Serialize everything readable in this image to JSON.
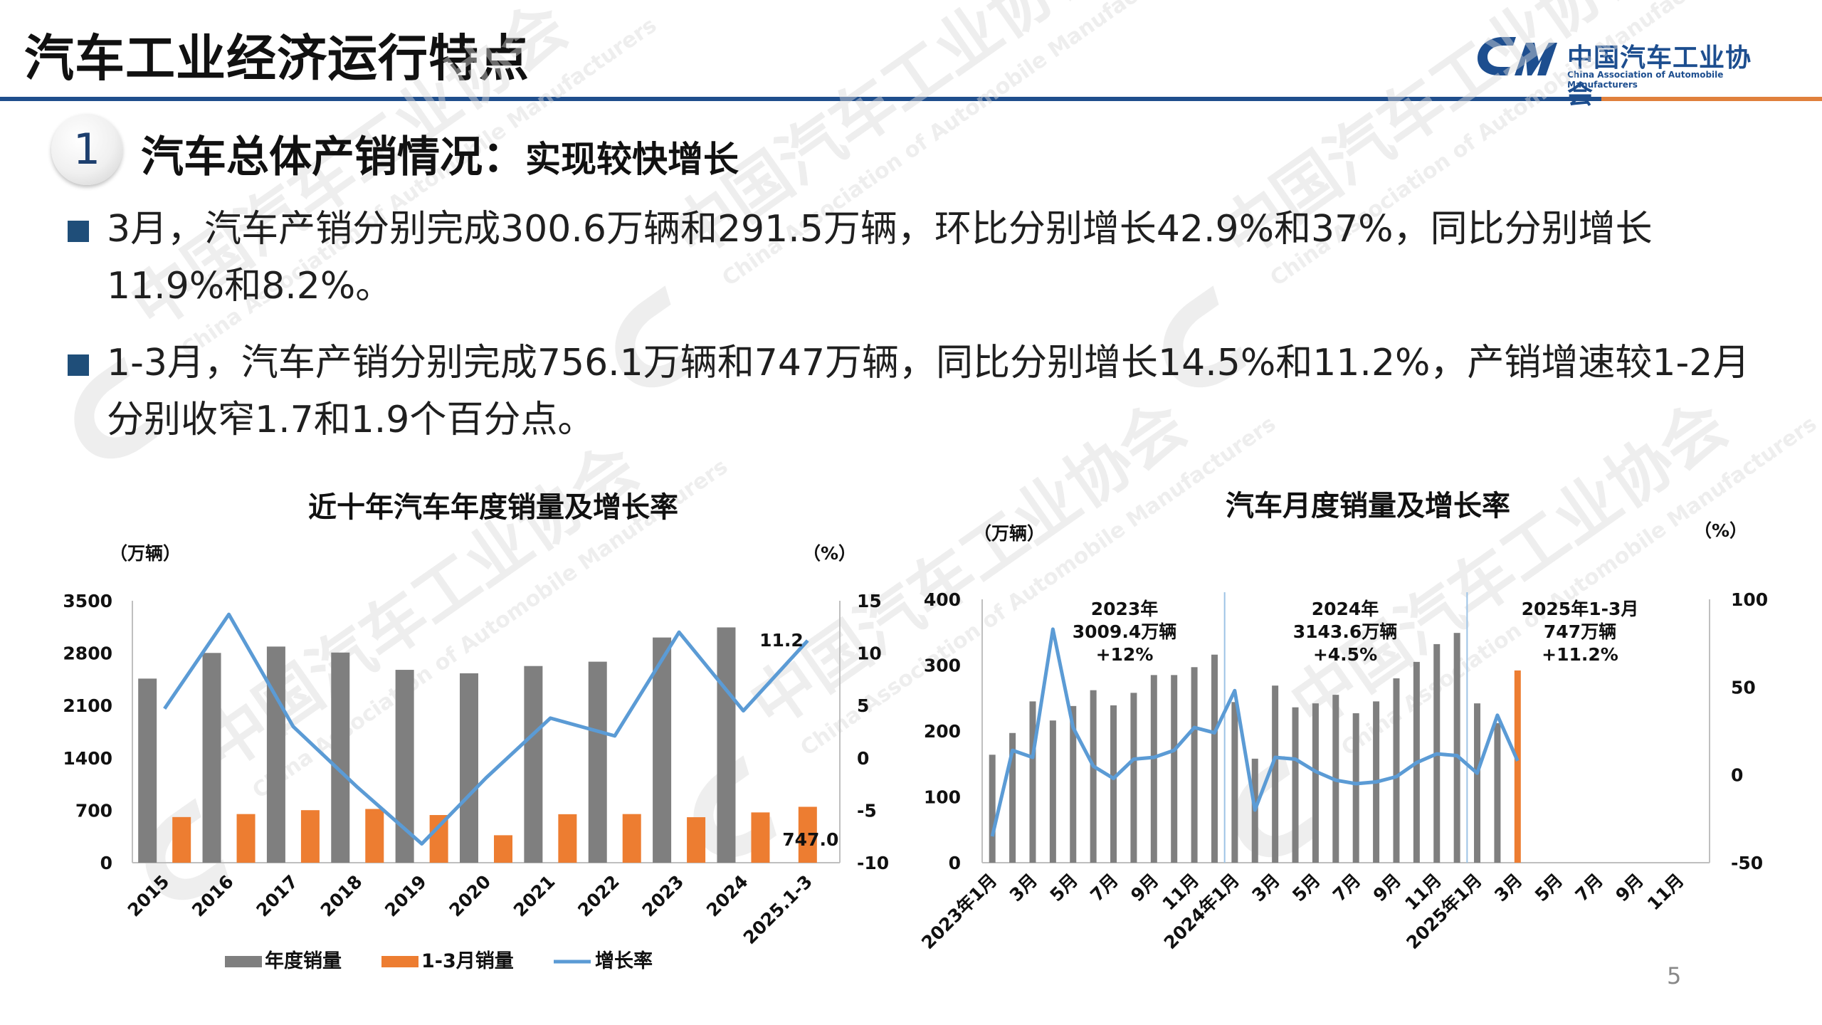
{
  "header": {
    "title": "汽车工业经济运行特点",
    "logo_cn": "中国汽车工业协会",
    "logo_en": "China Association of Automobile Manufacturers"
  },
  "section": {
    "number": "1",
    "title": "汽车总体产销情况：",
    "subtitle": "实现较快增长"
  },
  "bullets": [
    {
      "line1": "3月，汽车产销分别完成300.6万辆和291.5万辆，环比分别增长42.9%和37%，同比分别增长",
      "line2": "11.9%和8.2%。"
    },
    {
      "line1": "1-3月，汽车产销分别完成756.1万辆和747万辆，同比分别增长14.5%和11.2%，产销增速较1-2月",
      "line2": "分别收窄1.7和1.9个百分点。"
    }
  ],
  "page_number": "5",
  "chart_data": [
    {
      "type": "bar",
      "title": "近十年汽车年度销量及增长率",
      "y_unit_left": "（万辆）",
      "y_unit_right": "（%）",
      "categories": [
        "2015",
        "2016",
        "2017",
        "2018",
        "2019",
        "2020",
        "2021",
        "2022",
        "2023",
        "2024",
        "2025.1-3"
      ],
      "ylim": [
        0,
        3500
      ],
      "yticks": [
        "3500",
        "2800",
        "2100",
        "1400",
        "700",
        "0"
      ],
      "y2lim": [
        -10,
        15
      ],
      "y2ticks": [
        "15",
        "10",
        "5",
        "0",
        "-5",
        "-10"
      ],
      "series": [
        {
          "name": "年度销量",
          "kind": "bar",
          "color": "#7f7f7f",
          "values": [
            2460,
            2803,
            2888,
            2808,
            2577,
            2531,
            2628,
            2686,
            3009,
            3144,
            null
          ]
        },
        {
          "name": "1-3月销量",
          "kind": "bar",
          "color": "#ed7d31",
          "values": [
            610,
            650,
            702,
            718,
            637,
            367,
            648,
            650,
            608,
            672,
            747
          ]
        },
        {
          "name": "增长率",
          "kind": "line",
          "axis": "right",
          "color": "#5b9bd5",
          "values": [
            4.7,
            13.7,
            3.0,
            -2.8,
            -8.2,
            -1.9,
            3.8,
            2.1,
            12.0,
            4.5,
            11.2
          ]
        }
      ],
      "data_labels": [
        "11.2",
        "747.0"
      ],
      "legend": [
        "年度销量",
        "1-3月销量",
        "增长率"
      ],
      "legend_position": "bottom"
    },
    {
      "type": "bar",
      "title": "汽车月度销量及增长率",
      "y_unit_left": "（万辆）",
      "y_unit_right": "（%）",
      "ylim": [
        0,
        400
      ],
      "yticks": [
        "400",
        "300",
        "200",
        "100",
        "0"
      ],
      "y2lim": [
        -50,
        100
      ],
      "y2ticks": [
        "100",
        "50",
        "0",
        "-50"
      ],
      "x_tick_labels": [
        "2023年1月",
        "3月",
        "5月",
        "7月",
        "9月",
        "11月",
        "2024年1月",
        "3月",
        "5月",
        "7月",
        "9月",
        "11月",
        "2025年1月",
        "3月",
        "5月",
        "7月",
        "9月",
        "11月"
      ],
      "months": [
        "2023-01",
        "2023-02",
        "2023-03",
        "2023-04",
        "2023-05",
        "2023-06",
        "2023-07",
        "2023-08",
        "2023-09",
        "2023-10",
        "2023-11",
        "2023-12",
        "2024-01",
        "2024-02",
        "2024-03",
        "2024-04",
        "2024-05",
        "2024-06",
        "2024-07",
        "2024-08",
        "2024-09",
        "2024-10",
        "2024-11",
        "2024-12",
        "2025-01",
        "2025-02",
        "2025-03"
      ],
      "sales": [
        164,
        197,
        245,
        216,
        238,
        262,
        239,
        258,
        285,
        285,
        297,
        316,
        244,
        158,
        269,
        236,
        242,
        255,
        227,
        245,
        280,
        305,
        332,
        349,
        242,
        212,
        292
      ],
      "growth": [
        -35,
        14,
        10,
        83,
        27,
        5,
        -2,
        9,
        10,
        14,
        27,
        24,
        48,
        -20,
        10,
        9,
        2,
        -3,
        -5,
        -4,
        -1,
        7,
        12,
        11,
        1,
        34,
        8
      ],
      "bar_color": "#7f7f7f",
      "highlight_color": "#ed7d31",
      "line_color": "#5b9bd5",
      "annotations": [
        {
          "lines": [
            "2023年",
            "3009.4万辆",
            "+12%"
          ]
        },
        {
          "lines": [
            "2024年",
            "3143.6万辆",
            "+4.5%"
          ]
        },
        {
          "lines": [
            "2025年1-3月",
            "747万辆",
            "+11.2%"
          ]
        }
      ]
    }
  ]
}
